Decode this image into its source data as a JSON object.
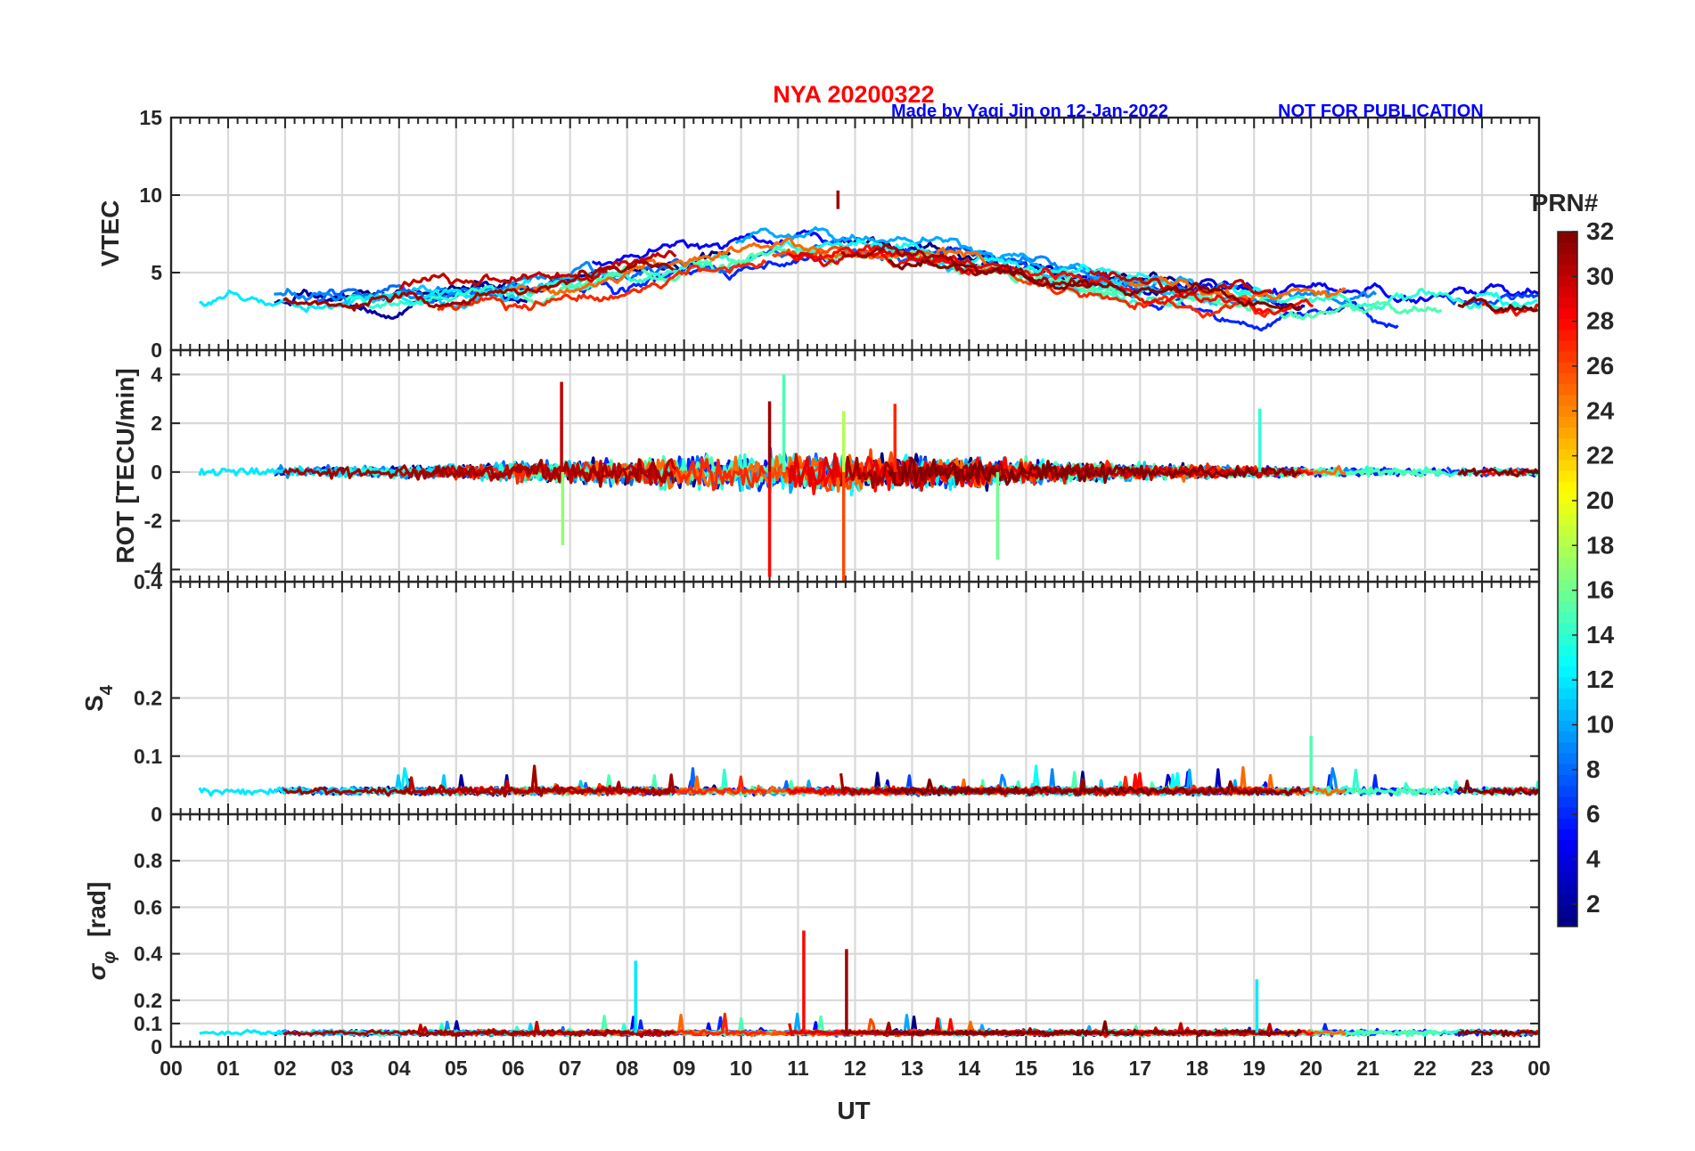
{
  "header": {
    "title": "NYA   20200322",
    "title_color": "#ff0000",
    "credit": "Made by Yaqi Jin on 12-Jan-2022",
    "notice": "NOT FOR PUBLICATION",
    "credit_color": "#0000ff"
  },
  "chart_data": {
    "type": "line",
    "x_axis": {
      "label": "UT",
      "ticks": [
        "00",
        "01",
        "02",
        "03",
        "04",
        "05",
        "06",
        "07",
        "08",
        "09",
        "10",
        "11",
        "12",
        "13",
        "14",
        "15",
        "16",
        "17",
        "18",
        "19",
        "20",
        "21",
        "22",
        "23",
        "00"
      ],
      "range_hours": [
        0,
        24
      ]
    },
    "grid": true,
    "colormap": "jet",
    "colorbar": {
      "title": "PRN#",
      "range": [
        1,
        32
      ],
      "ticks": [
        "2",
        "4",
        "6",
        "8",
        "10",
        "12",
        "14",
        "16",
        "18",
        "20",
        "22",
        "24",
        "26",
        "28",
        "30",
        "32"
      ],
      "placement": "right"
    },
    "panels": [
      {
        "id": "vtec",
        "ylabel": "VTEC",
        "ylim": [
          0,
          15
        ],
        "yticks": [
          "0",
          "5",
          "10",
          "15"
        ],
        "typical_range": [
          1,
          10.3
        ],
        "peak": {
          "value": 10.3,
          "ut": 11.7
        },
        "daytime_level": 6.5,
        "night_level": 3
      },
      {
        "id": "rot",
        "ylabel": "ROT [TECU/min]",
        "ylim": [
          -4.5,
          5
        ],
        "yticks": [
          "-4",
          "-2",
          "0",
          "2",
          "4"
        ],
        "max_spike": 4,
        "min_spike": -4.8,
        "spikes": [
          {
            "ut": 6.85,
            "value": 3.7
          },
          {
            "ut": 6.87,
            "value": -3.0
          },
          {
            "ut": 10.5,
            "value": -4.3
          },
          {
            "ut": 10.5,
            "value": 2.9
          },
          {
            "ut": 10.75,
            "value": 4.0
          },
          {
            "ut": 11.8,
            "value": -4.8
          },
          {
            "ut": 11.8,
            "value": 2.5
          },
          {
            "ut": 12.7,
            "value": 2.8
          },
          {
            "ut": 14.5,
            "value": -3.6
          },
          {
            "ut": 19.1,
            "value": 2.6
          }
        ]
      },
      {
        "id": "s4",
        "ylabel": "S4",
        "ylim": [
          0,
          0.4
        ],
        "yticks": [
          "0",
          "0.1",
          "0.2",
          "0.4"
        ],
        "baseline": 0.04,
        "max_value": 0.135,
        "max_ut": 20.0
      },
      {
        "id": "sigma_phi",
        "ylabel": "σφ [rad]",
        "ylim": [
          0,
          1
        ],
        "yticks": [
          "0",
          "0.1",
          "0.2",
          "0.4",
          "0.6",
          "0.8"
        ],
        "baseline": 0.06,
        "spikes": [
          {
            "ut": 8.15,
            "value": 0.37,
            "prn": 12
          },
          {
            "ut": 11.1,
            "value": 0.5,
            "prn": 28
          },
          {
            "ut": 11.85,
            "value": 0.42,
            "prn": 31
          },
          {
            "ut": 19.05,
            "value": 0.29,
            "prn": 12
          }
        ]
      }
    ]
  }
}
